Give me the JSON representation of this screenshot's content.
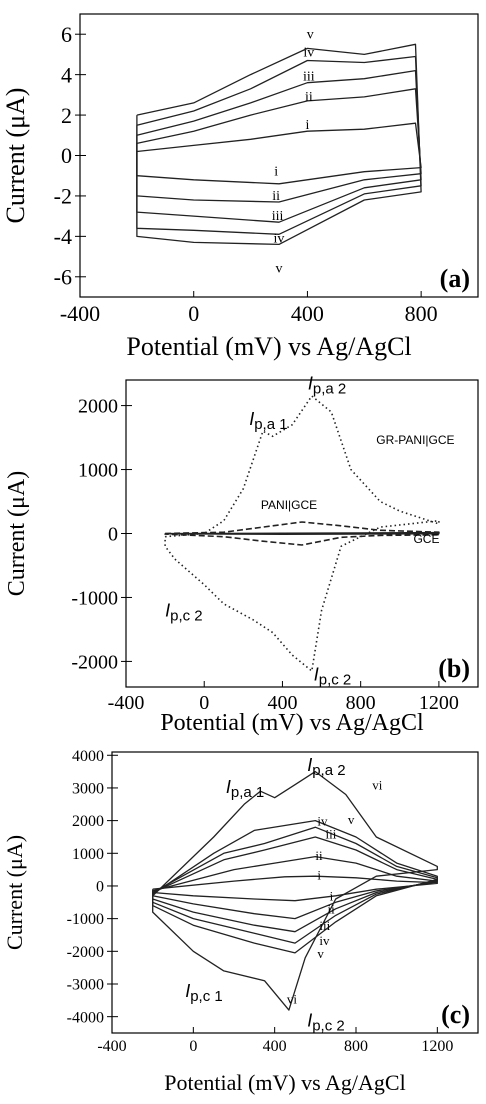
{
  "chart_data": [
    {
      "type": "line",
      "panel_label": "(a)",
      "xlabel": "Potential (mV) vs Ag/AgCl",
      "ylabel": "Current (μA)",
      "xlim": [
        -400,
        1000
      ],
      "ylim": [
        -7,
        7
      ],
      "xticks": [
        -400,
        0,
        400,
        800
      ],
      "yticks": [
        6,
        4,
        2,
        0,
        -2,
        -4,
        -6
      ],
      "curve_labels_anodic": [
        "i",
        "ii",
        "iii",
        "iv",
        "v"
      ],
      "curve_labels_cathodic": [
        "i",
        "ii",
        "iii",
        "iv",
        "v"
      ],
      "series": [
        {
          "label": "i",
          "anodic": [
            [
              -200,
              0.2
            ],
            [
              0,
              0.5
            ],
            [
              200,
              0.8
            ],
            [
              400,
              1.2
            ],
            [
              600,
              1.3
            ],
            [
              780,
              1.6
            ]
          ],
          "cathodic": [
            [
              800,
              -0.6
            ],
            [
              600,
              -0.8
            ],
            [
              300,
              -1.4
            ],
            [
              0,
              -1.2
            ],
            [
              -200,
              -1.0
            ]
          ]
        },
        {
          "label": "ii",
          "anodic": [
            [
              -200,
              0.6
            ],
            [
              0,
              1.2
            ],
            [
              200,
              2.0
            ],
            [
              400,
              2.7
            ],
            [
              600,
              2.9
            ],
            [
              780,
              3.3
            ]
          ],
          "cathodic": [
            [
              800,
              -0.9
            ],
            [
              600,
              -1.2
            ],
            [
              300,
              -2.3
            ],
            [
              0,
              -2.2
            ],
            [
              -200,
              -2.0
            ]
          ]
        },
        {
          "label": "iii",
          "anodic": [
            [
              -200,
              1.0
            ],
            [
              0,
              1.7
            ],
            [
              200,
              2.6
            ],
            [
              400,
              3.6
            ],
            [
              600,
              3.8
            ],
            [
              780,
              4.2
            ]
          ],
          "cathodic": [
            [
              800,
              -1.2
            ],
            [
              600,
              -1.6
            ],
            [
              300,
              -3.3
            ],
            [
              0,
              -3.0
            ],
            [
              -200,
              -2.8
            ]
          ]
        },
        {
          "label": "iv",
          "anodic": [
            [
              -200,
              1.5
            ],
            [
              0,
              2.2
            ],
            [
              200,
              3.3
            ],
            [
              400,
              4.7
            ],
            [
              600,
              4.6
            ],
            [
              780,
              4.9
            ]
          ],
          "cathodic": [
            [
              800,
              -1.5
            ],
            [
              600,
              -1.9
            ],
            [
              300,
              -3.9
            ],
            [
              0,
              -3.7
            ],
            [
              -200,
              -3.6
            ]
          ]
        },
        {
          "label": "v",
          "anodic": [
            [
              -200,
              2.0
            ],
            [
              0,
              2.6
            ],
            [
              200,
              4.0
            ],
            [
              400,
              5.3
            ],
            [
              600,
              5.0
            ],
            [
              780,
              5.5
            ]
          ],
          "cathodic": [
            [
              800,
              -1.8
            ],
            [
              600,
              -2.2
            ],
            [
              300,
              -4.4
            ],
            [
              0,
              -4.3
            ],
            [
              -200,
              -4.0
            ]
          ]
        }
      ]
    },
    {
      "type": "line",
      "panel_label": "(b)",
      "xlabel": "Potential (mV) vs Ag/AgCl",
      "ylabel": "Current (μA)",
      "xlim": [
        -400,
        1400
      ],
      "ylim": [
        -2400,
        2400
      ],
      "xticks": [
        -400,
        0,
        400,
        800,
        1200
      ],
      "yticks": [
        2000,
        1000,
        0,
        -1000,
        -2000
      ],
      "annotations": [
        {
          "base": "I",
          "sub": "p,a 1"
        },
        {
          "base": "I",
          "sub": "p,a 2"
        },
        {
          "base": "I",
          "sub": "p,c 2"
        },
        {
          "base": "I",
          "sub": "p,c 2"
        }
      ],
      "series": [
        {
          "name": "GR-PANI|GCE",
          "style": "dotted",
          "anodic": [
            [
              -200,
              -50
            ],
            [
              0,
              0
            ],
            [
              100,
              200
            ],
            [
              200,
              700
            ],
            [
              300,
              1600
            ],
            [
              350,
              1520
            ],
            [
              450,
              1700
            ],
            [
              550,
              2150
            ],
            [
              650,
              1900
            ],
            [
              750,
              1000
            ],
            [
              900,
              500
            ],
            [
              1000,
              350
            ],
            [
              1200,
              150
            ]
          ],
          "cathodic": [
            [
              1200,
              200
            ],
            [
              900,
              100
            ],
            [
              700,
              -200
            ],
            [
              600,
              -1200
            ],
            [
              550,
              -2150
            ],
            [
              450,
              -1900
            ],
            [
              350,
              -1550
            ],
            [
              250,
              -1350
            ],
            [
              100,
              -1100
            ],
            [
              0,
              -800
            ],
            [
              -150,
              -400
            ],
            [
              -200,
              -200
            ]
          ]
        },
        {
          "name": "PANI|GCE",
          "style": "dashed",
          "anodic": [
            [
              -200,
              0
            ],
            [
              100,
              20
            ],
            [
              300,
              100
            ],
            [
              500,
              180
            ],
            [
              700,
              120
            ],
            [
              900,
              50
            ],
            [
              1200,
              20
            ]
          ],
          "cathodic": [
            [
              1200,
              -20
            ],
            [
              900,
              -30
            ],
            [
              700,
              -60
            ],
            [
              500,
              -180
            ],
            [
              300,
              -120
            ],
            [
              100,
              -50
            ],
            [
              -200,
              -10
            ]
          ]
        },
        {
          "name": "GCE",
          "style": "solid",
          "anodic": [
            [
              -200,
              0
            ],
            [
              400,
              5
            ],
            [
              800,
              10
            ],
            [
              1200,
              15
            ]
          ],
          "cathodic": [
            [
              1200,
              -5
            ],
            [
              800,
              -10
            ],
            [
              400,
              -12
            ],
            [
              -200,
              -5
            ]
          ]
        }
      ]
    },
    {
      "type": "line",
      "panel_label": "(c)",
      "xlabel": "Potential (mV) vs Ag/AgCl",
      "ylabel": "Current (μA)",
      "xlim": [
        -400,
        1400
      ],
      "ylim": [
        -4500,
        4100
      ],
      "xticks": [
        -400,
        0,
        400,
        800,
        1200
      ],
      "yticks": [
        4000,
        3000,
        2000,
        1000,
        0,
        -1000,
        -2000,
        -3000,
        -4000
      ],
      "curve_labels_anodic": [
        "i",
        "ii",
        "iii",
        "iv",
        "v",
        "vi"
      ],
      "curve_labels_cathodic": [
        "i",
        "ii",
        "iii",
        "iv",
        "v",
        "vi"
      ],
      "annotations": [
        {
          "base": "I",
          "sub": "p,a 1"
        },
        {
          "base": "I",
          "sub": "p,a 2"
        },
        {
          "base": "I",
          "sub": "p,c 1"
        },
        {
          "base": "I",
          "sub": "p,c 2"
        }
      ],
      "series": [
        {
          "label": "i",
          "anodic": [
            [
              -200,
              -100
            ],
            [
              200,
              150
            ],
            [
              450,
              280
            ],
            [
              600,
              300
            ],
            [
              800,
              250
            ],
            [
              1000,
              150
            ],
            [
              1200,
              100
            ]
          ],
          "cathodic": [
            [
              1200,
              80
            ],
            [
              900,
              -100
            ],
            [
              700,
              -300
            ],
            [
              500,
              -450
            ],
            [
              300,
              -400
            ],
            [
              0,
              -300
            ],
            [
              -200,
              -200
            ]
          ]
        },
        {
          "label": "ii",
          "anodic": [
            [
              -200,
              -150
            ],
            [
              200,
              500
            ],
            [
              400,
              700
            ],
            [
              600,
              900
            ],
            [
              800,
              700
            ],
            [
              1000,
              300
            ],
            [
              1200,
              150
            ]
          ],
          "cathodic": [
            [
              1200,
              120
            ],
            [
              900,
              -150
            ],
            [
              700,
              -500
            ],
            [
              500,
              -1000
            ],
            [
              300,
              -850
            ],
            [
              0,
              -550
            ],
            [
              -200,
              -300
            ]
          ]
        },
        {
          "label": "iii",
          "anodic": [
            [
              -200,
              -200
            ],
            [
              150,
              800
            ],
            [
              350,
              1100
            ],
            [
              600,
              1500
            ],
            [
              800,
              1100
            ],
            [
              1000,
              500
            ],
            [
              1200,
              200
            ]
          ],
          "cathodic": [
            [
              1200,
              150
            ],
            [
              900,
              -200
            ],
            [
              700,
              -700
            ],
            [
              500,
              -1400
            ],
            [
              300,
              -1200
            ],
            [
              0,
              -800
            ],
            [
              -200,
              -400
            ]
          ]
        },
        {
          "label": "iv",
          "anodic": [
            [
              -200,
              -200
            ],
            [
              150,
              1000
            ],
            [
              350,
              1300
            ],
            [
              600,
              1800
            ],
            [
              800,
              1300
            ],
            [
              1000,
              600
            ],
            [
              1200,
              250
            ]
          ],
          "cathodic": [
            [
              1200,
              180
            ],
            [
              900,
              -250
            ],
            [
              700,
              -900
            ],
            [
              500,
              -1750
            ],
            [
              300,
              -1450
            ],
            [
              0,
              -1000
            ],
            [
              -200,
              -500
            ]
          ]
        },
        {
          "label": "v",
          "anodic": [
            [
              -200,
              -250
            ],
            [
              100,
              1000
            ],
            [
              300,
              1700
            ],
            [
              600,
              2000
            ],
            [
              800,
              1500
            ],
            [
              1000,
              700
            ],
            [
              1200,
              300
            ]
          ],
          "cathodic": [
            [
              1200,
              200
            ],
            [
              900,
              -300
            ],
            [
              700,
              -1100
            ],
            [
              500,
              -2050
            ],
            [
              300,
              -1750
            ],
            [
              0,
              -1200
            ],
            [
              -200,
              -600
            ]
          ]
        },
        {
          "label": "vi",
          "anodic": [
            [
              -200,
              -300
            ],
            [
              100,
              1500
            ],
            [
              250,
              2500
            ],
            [
              330,
              2900
            ],
            [
              400,
              2700
            ],
            [
              500,
              3100
            ],
            [
              600,
              3500
            ],
            [
              750,
              2800
            ],
            [
              900,
              1500
            ],
            [
              1200,
              600
            ]
          ],
          "cathodic": [
            [
              1200,
              500
            ],
            [
              900,
              300
            ],
            [
              700,
              -400
            ],
            [
              550,
              -2200
            ],
            [
              470,
              -3800
            ],
            [
              350,
              -2900
            ],
            [
              150,
              -2600
            ],
            [
              0,
              -2000
            ],
            [
              -200,
              -800
            ]
          ]
        }
      ]
    }
  ]
}
